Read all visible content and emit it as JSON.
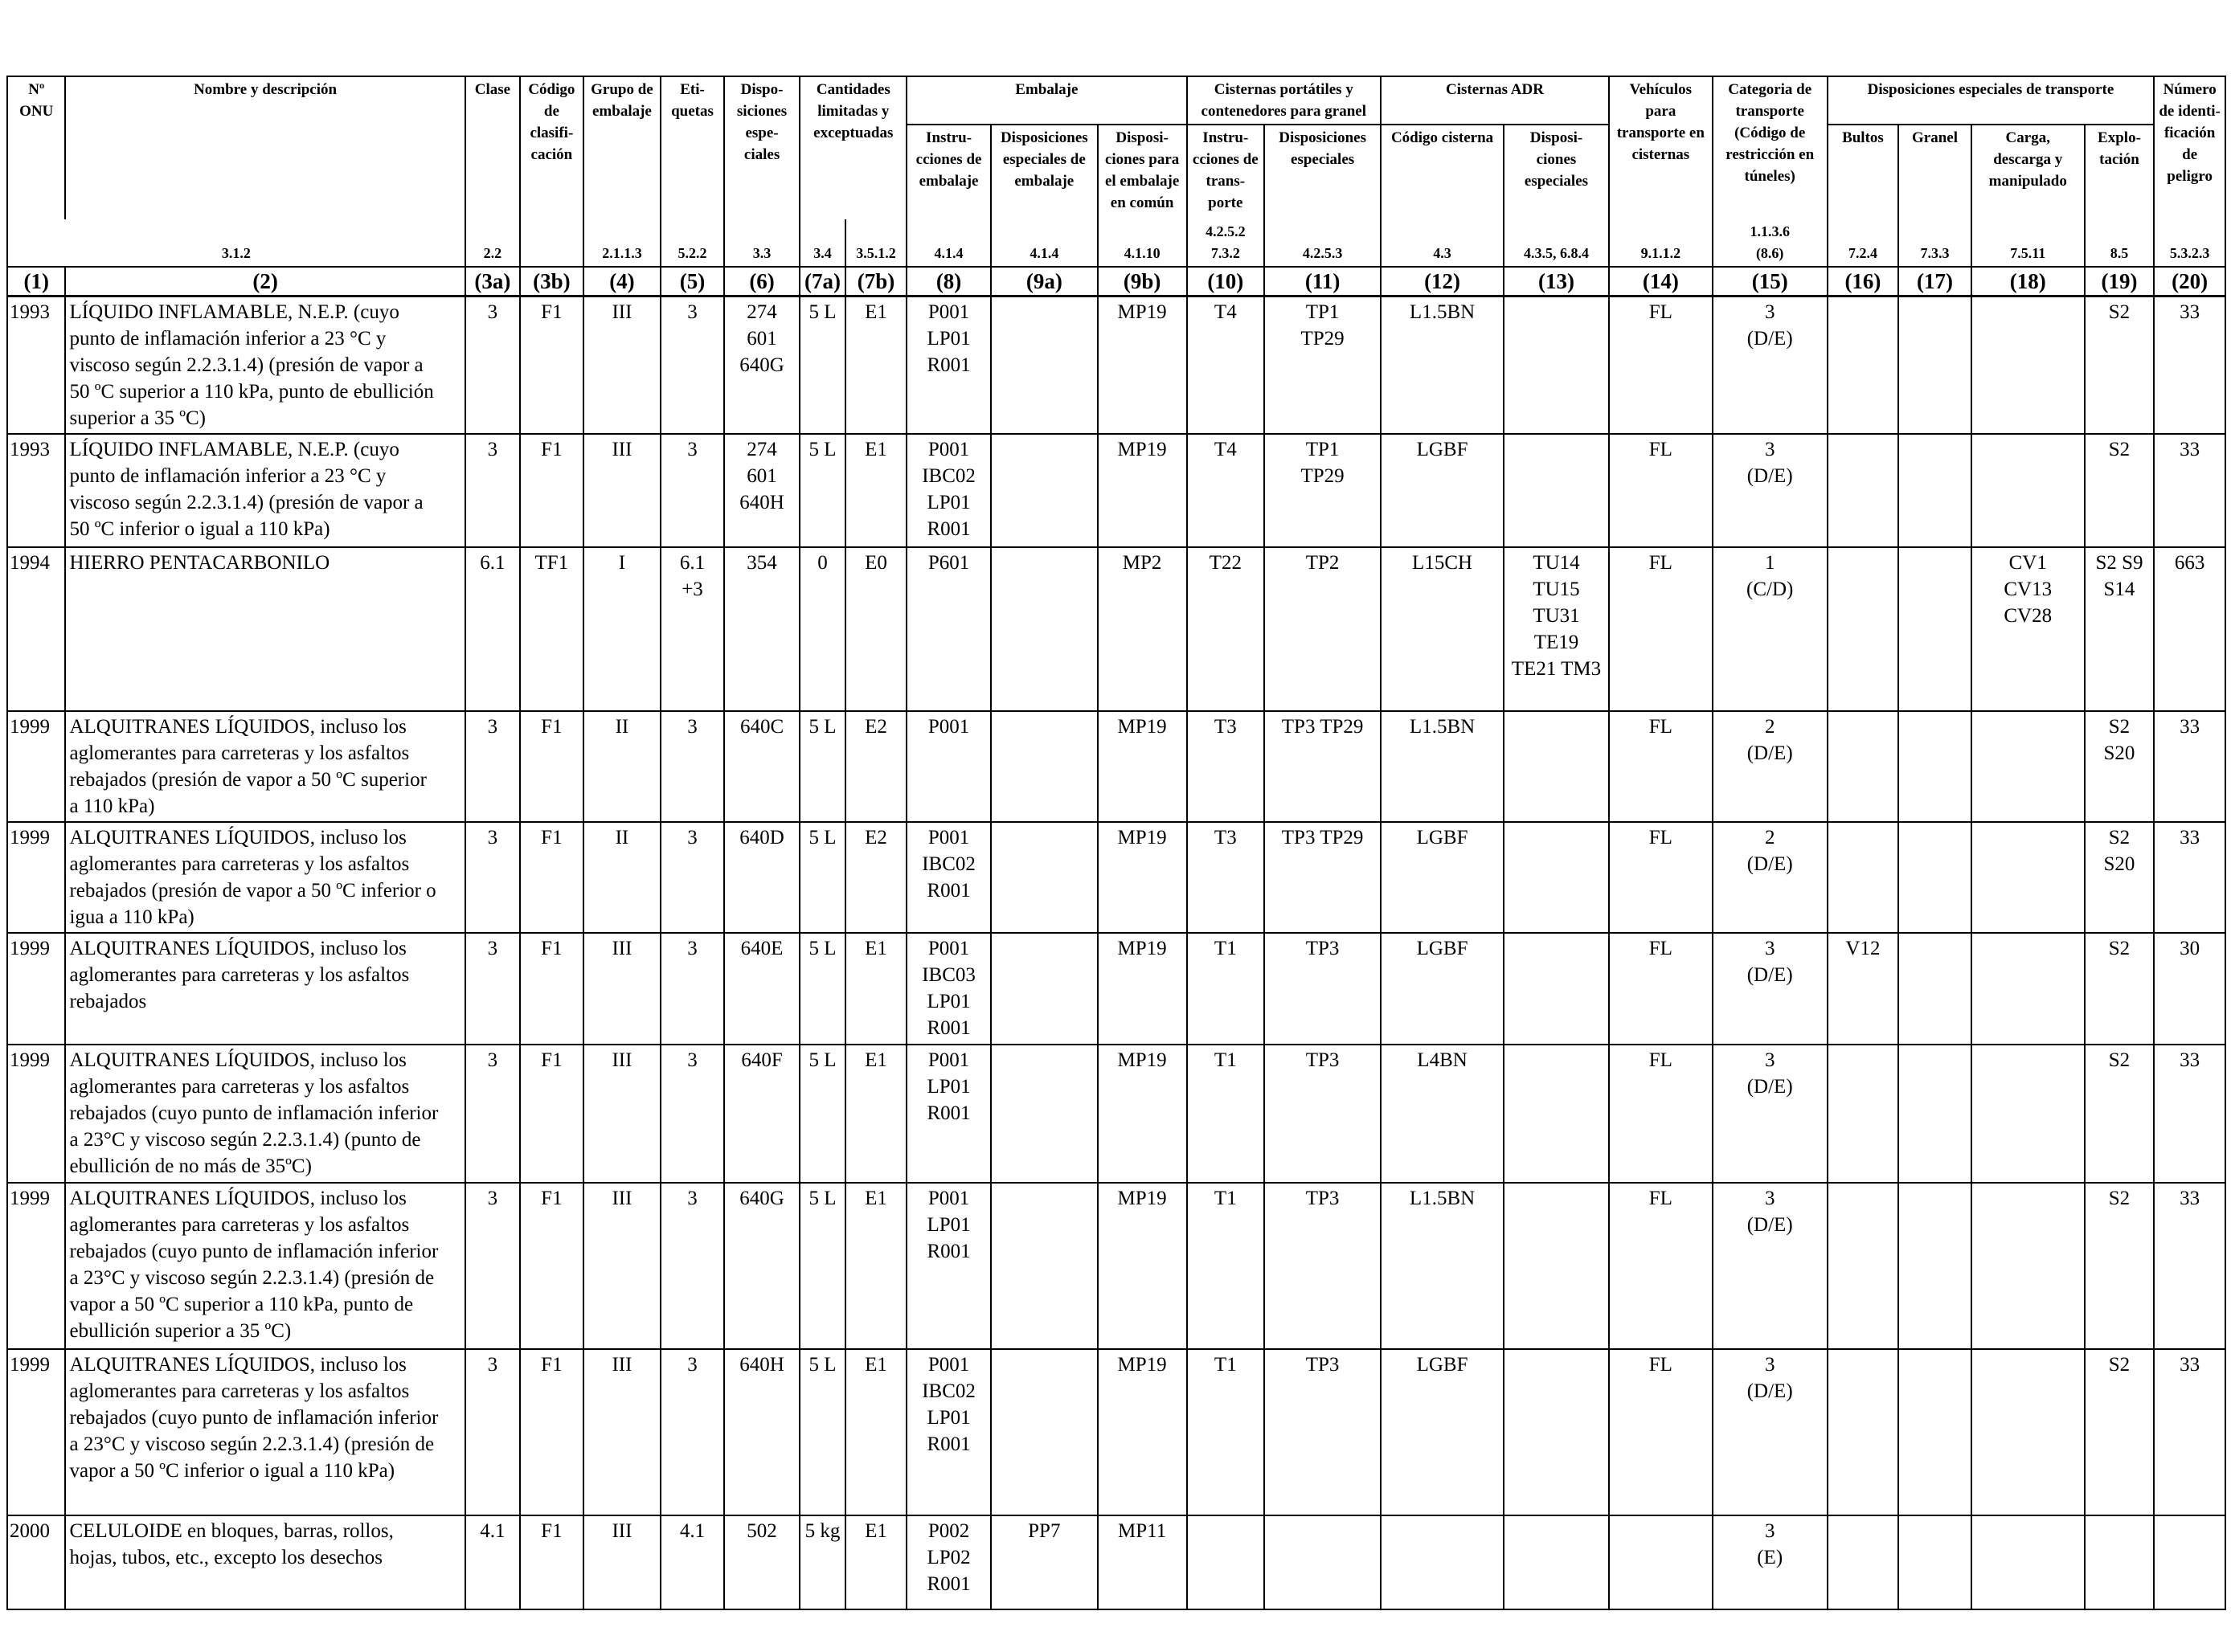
{
  "headers": {
    "onu": "Nº\nONU",
    "nombre": "Nombre y descripción",
    "clase": "Clase",
    "codigo": "Código\nde clasifi-\ncación",
    "grupo": "Grupo de\nembalaje",
    "etiquetas": "Eti-\nquetas",
    "disposiciones": "Dispo-\nsiciones\nespe-\nciales",
    "cantidades": "Cantidades\nlimitadas y\nexceptuadas",
    "embalaje": "Embalaje",
    "instrucciones_embalaje": "Instru-\ncciones de\nembalaje",
    "disp_esp_embalaje": "Disposiciones\nespeciales de\nembalaje",
    "disp_embalaje_comun": "Disposi-\nciones para\nel embalaje\nen común",
    "cisternas_portatiles": "Cisternas portátiles y\ncontenedores para granel",
    "instr_transporte": "Instru-\ncciones de\ntrans-\nporte",
    "disp_especiales_cist": "Disposiciones\nespeciales",
    "cisternas_adr": "Cisternas ADR",
    "codigo_cisterna": "Código cisterna",
    "disp_especiales_adr": "Disposi-\nciones\nespeciales",
    "vehiculos": "Vehículos\npara\ntransporte en\ncisternas",
    "categoria": "Categoria de\ntransporte\n(Código de\nrestricción en\ntúneles)",
    "disp_transporte": "Disposiciones especiales de transporte",
    "bultos": "Bultos",
    "granel": "Granel",
    "carga": "Carga,\ndescarga y\nmanipulado",
    "explotacion": "Explo-\ntación",
    "numero_peligro": "Número\nde identi-\nficación\nde peligro"
  },
  "refs": [
    "3.1.2",
    "2.2",
    "",
    "2.1.1.3",
    "5.2.2",
    "3.3",
    "3.4",
    "3.5.1.2",
    "4.1.4",
    "4.1.4",
    "4.1.10",
    "4.2.5.2\n7.3.2",
    "4.2.5.3",
    "4.3",
    "4.3.5, 6.8.4",
    "9.1.1.2",
    "1.1.3.6\n(8.6)",
    "7.2.4",
    "7.3.3",
    "7.5.11",
    "8.5",
    "5.3.2.3"
  ],
  "col_numbers": [
    "(1)",
    "(2)",
    "(3a)",
    "(3b)",
    "(4)",
    "(5)",
    "(6)",
    "(7a)",
    "(7b)",
    "(8)",
    "(9a)",
    "(9b)",
    "(10)",
    "(11)",
    "(12)",
    "(13)",
    "(14)",
    "(15)",
    "(16)",
    "(17)",
    "(18)",
    "(19)",
    "(20)"
  ],
  "rows": [
    {
      "onu": "1993",
      "name": "LÍQUIDO INFLAMABLE, N.E.P. (cuyo\npunto de inflamación inferior a 23 °C y\nviscoso según 2.2.3.1.4) (presión de vapor a\n50 ºC superior a 110 kPa, punto de ebullición\nsuperior a 35 ºC)",
      "clase": "3",
      "codigo": "F1",
      "grupo": "III",
      "etiquetas": "3",
      "disp": "274\n601\n640G",
      "cant_lim": "5 L",
      "cant_exc": "E1",
      "instr_emb": "P001\nLP01\nR001",
      "disp_emb": "",
      "emb_comun": "MP19",
      "instr_cist": "T4",
      "disp_cist": "TP1\nTP29",
      "cod_cist": "L1.5BN",
      "disp_adr": "",
      "vehiculos": "FL",
      "categoria": "3\n(D/E)",
      "bultos": "",
      "granel": "",
      "carga": "",
      "explot": "S2",
      "peligro": "33"
    },
    {
      "onu": "1993",
      "name": "LÍQUIDO INFLAMABLE, N.E.P. (cuyo\npunto de inflamación inferior a 23 °C y\nviscoso según 2.2.3.1.4) (presión de vapor a\n50 ºC inferior o igual a 110 kPa)",
      "clase": "3",
      "codigo": "F1",
      "grupo": "III",
      "etiquetas": "3",
      "disp": "274\n601\n640H",
      "cant_lim": "5 L",
      "cant_exc": "E1",
      "instr_emb": "P001\nIBC02\nLP01\nR001",
      "disp_emb": "",
      "emb_comun": "MP19",
      "instr_cist": "T4",
      "disp_cist": "TP1\nTP29",
      "cod_cist": "LGBF",
      "disp_adr": "",
      "vehiculos": "FL",
      "categoria": "3\n(D/E)",
      "bultos": "",
      "granel": "",
      "carga": "",
      "explot": "S2",
      "peligro": "33"
    },
    {
      "onu": "1994",
      "name": "HIERRO PENTACARBONILO",
      "clase": "6.1",
      "codigo": "TF1",
      "grupo": "I",
      "etiquetas": "6.1\n+3",
      "disp": "354",
      "cant_lim": "0",
      "cant_exc": "E0",
      "instr_emb": "P601",
      "disp_emb": "",
      "emb_comun": "MP2",
      "instr_cist": "T22",
      "disp_cist": "TP2",
      "cod_cist": "L15CH",
      "disp_adr": "TU14\nTU15\nTU31\nTE19\nTE21 TM3",
      "vehiculos": "FL",
      "categoria": "1\n(C/D)",
      "bultos": "",
      "granel": "",
      "carga": "CV1\nCV13\nCV28",
      "explot": "S2 S9\nS14",
      "peligro": "663"
    },
    {
      "onu": "1999",
      "name": "ALQUITRANES LÍQUIDOS, incluso los\naglomerantes para carreteras y los asfaltos\nrebajados (presión de vapor a 50 ºC superior\na 110 kPa)",
      "clase": "3",
      "codigo": "F1",
      "grupo": "II",
      "etiquetas": "3",
      "disp": "640C",
      "cant_lim": "5 L",
      "cant_exc": "E2",
      "instr_emb": "P001",
      "disp_emb": "",
      "emb_comun": "MP19",
      "instr_cist": "T3",
      "disp_cist": "TP3 TP29",
      "cod_cist": "L1.5BN",
      "disp_adr": "",
      "vehiculos": "FL",
      "categoria": "2\n(D/E)",
      "bultos": "",
      "granel": "",
      "carga": "",
      "explot": "S2\nS20",
      "peligro": "33"
    },
    {
      "onu": "1999",
      "name": "ALQUITRANES LÍQUIDOS, incluso los\naglomerantes para carreteras y los asfaltos\nrebajados (presión de vapor a 50 ºC inferior o\nigua a 110 kPa)",
      "clase": "3",
      "codigo": "F1",
      "grupo": "II",
      "etiquetas": "3",
      "disp": "640D",
      "cant_lim": "5 L",
      "cant_exc": "E2",
      "instr_emb": "P001\nIBC02\nR001",
      "disp_emb": "",
      "emb_comun": "MP19",
      "instr_cist": "T3",
      "disp_cist": "TP3 TP29",
      "cod_cist": "LGBF",
      "disp_adr": "",
      "vehiculos": "FL",
      "categoria": "2\n(D/E)",
      "bultos": "",
      "granel": "",
      "carga": "",
      "explot": "S2\nS20",
      "peligro": "33"
    },
    {
      "onu": "1999",
      "name": "ALQUITRANES LÍQUIDOS, incluso los\naglomerantes para carreteras y los asfaltos\nrebajados",
      "clase": "3",
      "codigo": "F1",
      "grupo": "III",
      "etiquetas": "3",
      "disp": "640E",
      "cant_lim": "5 L",
      "cant_exc": "E1",
      "instr_emb": "P001\nIBC03\nLP01\nR001",
      "disp_emb": "",
      "emb_comun": "MP19",
      "instr_cist": "T1",
      "disp_cist": "TP3",
      "cod_cist": "LGBF",
      "disp_adr": "",
      "vehiculos": "FL",
      "categoria": "3\n(D/E)",
      "bultos": "V12",
      "granel": "",
      "carga": "",
      "explot": "S2",
      "peligro": "30"
    },
    {
      "onu": "1999",
      "name": "ALQUITRANES LÍQUIDOS, incluso los\naglomerantes para carreteras y los asfaltos\nrebajados (cuyo punto de inflamación inferior\na 23°C y viscoso según 2.2.3.1.4) (punto de\nebullición de no más de 35ºC)",
      "clase": "3",
      "codigo": "F1",
      "grupo": "III",
      "etiquetas": "3",
      "disp": "640F",
      "cant_lim": "5 L",
      "cant_exc": "E1",
      "instr_emb": "P001\nLP01\nR001",
      "disp_emb": "",
      "emb_comun": "MP19",
      "instr_cist": "T1",
      "disp_cist": "TP3",
      "cod_cist": "L4BN",
      "disp_adr": "",
      "vehiculos": "FL",
      "categoria": "3\n(D/E)",
      "bultos": "",
      "granel": "",
      "carga": "",
      "explot": "S2",
      "peligro": "33"
    },
    {
      "onu": "1999",
      "name": "ALQUITRANES LÍQUIDOS, incluso los\naglomerantes para carreteras y los asfaltos\nrebajados (cuyo punto de inflamación inferior\na 23°C y viscoso según 2.2.3.1.4) (presión de\nvapor a 50 ºC superior a 110 kPa, punto de\nebullición superior a 35 ºC)",
      "clase": "3",
      "codigo": "F1",
      "grupo": "III",
      "etiquetas": "3",
      "disp": "640G",
      "cant_lim": "5 L",
      "cant_exc": "E1",
      "instr_emb": "P001\nLP01\nR001",
      "disp_emb": "",
      "emb_comun": "MP19",
      "instr_cist": "T1",
      "disp_cist": "TP3",
      "cod_cist": "L1.5BN",
      "disp_adr": "",
      "vehiculos": "FL",
      "categoria": "3\n(D/E)",
      "bultos": "",
      "granel": "",
      "carga": "",
      "explot": "S2",
      "peligro": "33"
    },
    {
      "onu": "1999",
      "name": "ALQUITRANES LÍQUIDOS, incluso los\naglomerantes para carreteras y los asfaltos\nrebajados (cuyo punto de inflamación inferior\na 23°C y viscoso según 2.2.3.1.4) (presión de\nvapor a 50 ºC inferior o igual a 110 kPa)",
      "clase": "3",
      "codigo": "F1",
      "grupo": "III",
      "etiquetas": "3",
      "disp": "640H",
      "cant_lim": "5 L",
      "cant_exc": "E1",
      "instr_emb": "P001\nIBC02\nLP01\nR001",
      "disp_emb": "",
      "emb_comun": "MP19",
      "instr_cist": "T1",
      "disp_cist": "TP3",
      "cod_cist": "LGBF",
      "disp_adr": "",
      "vehiculos": "FL",
      "categoria": "3\n(D/E)",
      "bultos": "",
      "granel": "",
      "carga": "",
      "explot": "S2",
      "peligro": "33"
    },
    {
      "onu": "2000",
      "name": "CELULOIDE en bloques, barras, rollos,\nhojas, tubos, etc., excepto los desechos",
      "clase": "4.1",
      "codigo": "F1",
      "grupo": "III",
      "etiquetas": "4.1",
      "disp": "502",
      "cant_lim": "5 kg",
      "cant_exc": "E1",
      "instr_emb": "P002\nLP02\nR001",
      "disp_emb": "PP7",
      "emb_comun": "MP11",
      "instr_cist": "",
      "disp_cist": "",
      "cod_cist": "",
      "disp_adr": "",
      "vehiculos": "",
      "categoria": "3\n(E)",
      "bultos": "",
      "granel": "",
      "carga": "",
      "explot": "",
      "peligro": ""
    }
  ]
}
